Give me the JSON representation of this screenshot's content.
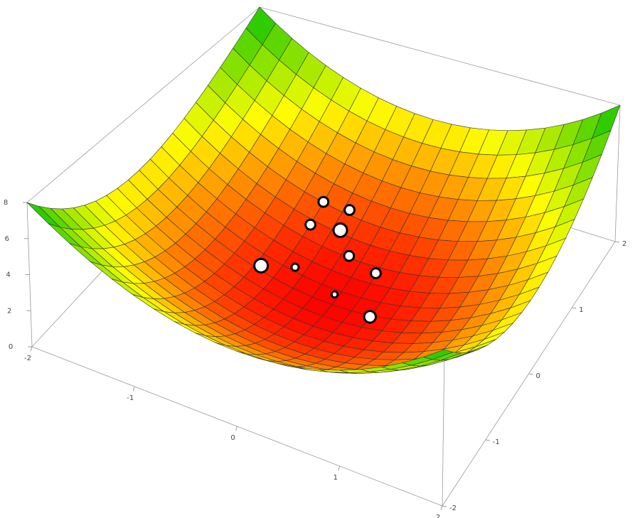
{
  "chart_data": {
    "type": "surface3d",
    "xlim": [
      -2,
      2
    ],
    "ylim": [
      -2,
      2
    ],
    "zlim": [
      0,
      8
    ],
    "xticks": [
      -2,
      -1,
      0,
      1,
      2
    ],
    "yticks": [
      -2,
      -1,
      0,
      1,
      2
    ],
    "zticks": [
      0,
      2,
      4,
      6,
      8
    ],
    "mesh": 20,
    "colors": [
      "#ff0000",
      "#ffff00",
      "#00c000"
    ],
    "points": {
      "x": [
        -0.6,
        -0.35,
        -0.6,
        -0.33,
        -0.13,
        -0.75,
        -0.5,
        0.19,
        -0.04,
        0.4
      ],
      "y": [
        1.0,
        1.05,
        0.75,
        0.83,
        0.62,
        0.05,
        0.25,
        0.53,
        0.14,
        -0.03
      ],
      "z": [
        1.4,
        1.2,
        0.9,
        0.8,
        0.4,
        0.6,
        0.31,
        0.32,
        0.02,
        0.2
      ],
      "size": [
        1.5,
        1.5,
        1.5,
        2.5,
        1.5,
        2.5,
        0.8,
        1.5,
        0.5,
        2
      ]
    }
  }
}
